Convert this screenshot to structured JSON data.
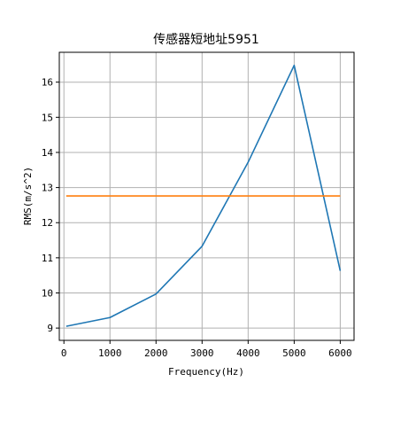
{
  "chart_data": {
    "type": "line",
    "title": "传感器短地址5951",
    "xlabel": "Frequency(Hz)",
    "ylabel": "RMS(m/s^2)",
    "xlim": [
      -100,
      6300
    ],
    "ylim": [
      8.65,
      16.85
    ],
    "xticks": [
      0,
      1000,
      2000,
      3000,
      4000,
      5000,
      6000
    ],
    "yticks": [
      9,
      10,
      11,
      12,
      13,
      14,
      15,
      16
    ],
    "grid": true,
    "series": [
      {
        "color": "#1f77b4",
        "x": [
          50,
          1000,
          2000,
          3000,
          4000,
          5000,
          6000
        ],
        "y": [
          9.05,
          9.3,
          9.97,
          11.33,
          13.72,
          16.48,
          10.63
        ]
      },
      {
        "color": "#ff7f0e",
        "x": [
          50,
          6000
        ],
        "y": [
          12.76,
          12.76
        ]
      }
    ]
  }
}
